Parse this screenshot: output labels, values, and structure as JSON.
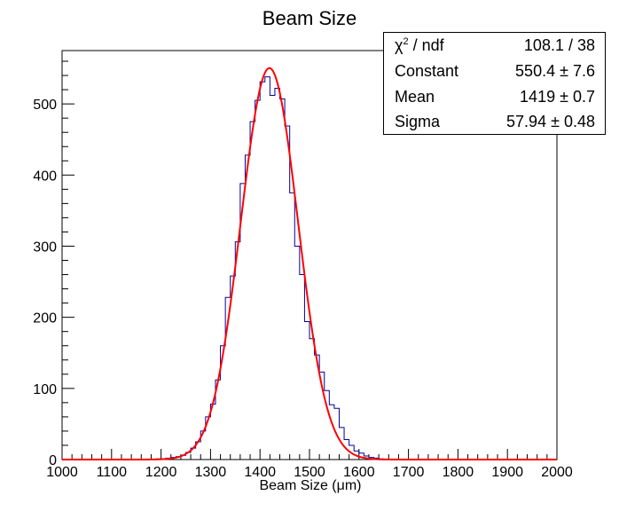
{
  "chart_data": {
    "type": "bar",
    "title": "Beam Size",
    "xlabel": "Beam Size (μm)",
    "ylabel": "",
    "xlim": [
      1000,
      2000
    ],
    "ylim": [
      0,
      575
    ],
    "x_ticks": [
      "1000",
      "1100",
      "1200",
      "1300",
      "1400",
      "1500",
      "1600",
      "1700",
      "1800",
      "1900",
      "2000"
    ],
    "y_ticks": [
      "0",
      "100",
      "200",
      "300",
      "400",
      "500"
    ],
    "grid": false,
    "bin_width": 10,
    "series": [
      {
        "style": "histogram",
        "color": "#000099",
        "x": [
          1190,
          1200,
          1210,
          1220,
          1230,
          1240,
          1250,
          1260,
          1270,
          1280,
          1290,
          1300,
          1310,
          1320,
          1330,
          1340,
          1350,
          1360,
          1370,
          1380,
          1390,
          1400,
          1410,
          1420,
          1430,
          1440,
          1450,
          1460,
          1470,
          1480,
          1490,
          1500,
          1510,
          1520,
          1530,
          1540,
          1550,
          1560,
          1570,
          1580,
          1590,
          1600,
          1610,
          1620,
          1630,
          1640,
          1650
        ],
        "values": [
          1,
          1,
          2,
          3,
          4,
          6,
          10,
          16,
          25,
          40,
          60,
          78,
          112,
          160,
          228,
          258,
          306,
          388,
          428,
          475,
          505,
          531,
          538,
          512,
          522,
          507,
          469,
          375,
          300,
          260,
          194,
          170,
          147,
          123,
          97,
          77,
          72,
          45,
          28,
          20,
          12,
          9,
          5,
          3,
          2,
          1,
          0
        ]
      },
      {
        "style": "line",
        "color": "#ff0000",
        "fit": "gaussian",
        "constant": 550.4,
        "mean": 1419,
        "sigma": 57.94
      }
    ],
    "stats": {
      "chi2_label": "χ",
      "chi2_sup": "2",
      "chi2_suffix": " / ndf",
      "chi2_value": "108.1 / 38",
      "constant_label": "Constant",
      "constant_value": "550.4 ± 7.6",
      "mean_label": "Mean",
      "mean_value": "1419 ± 0.7",
      "sigma_label": "Sigma",
      "sigma_value": "57.94 ± 0.48"
    }
  }
}
